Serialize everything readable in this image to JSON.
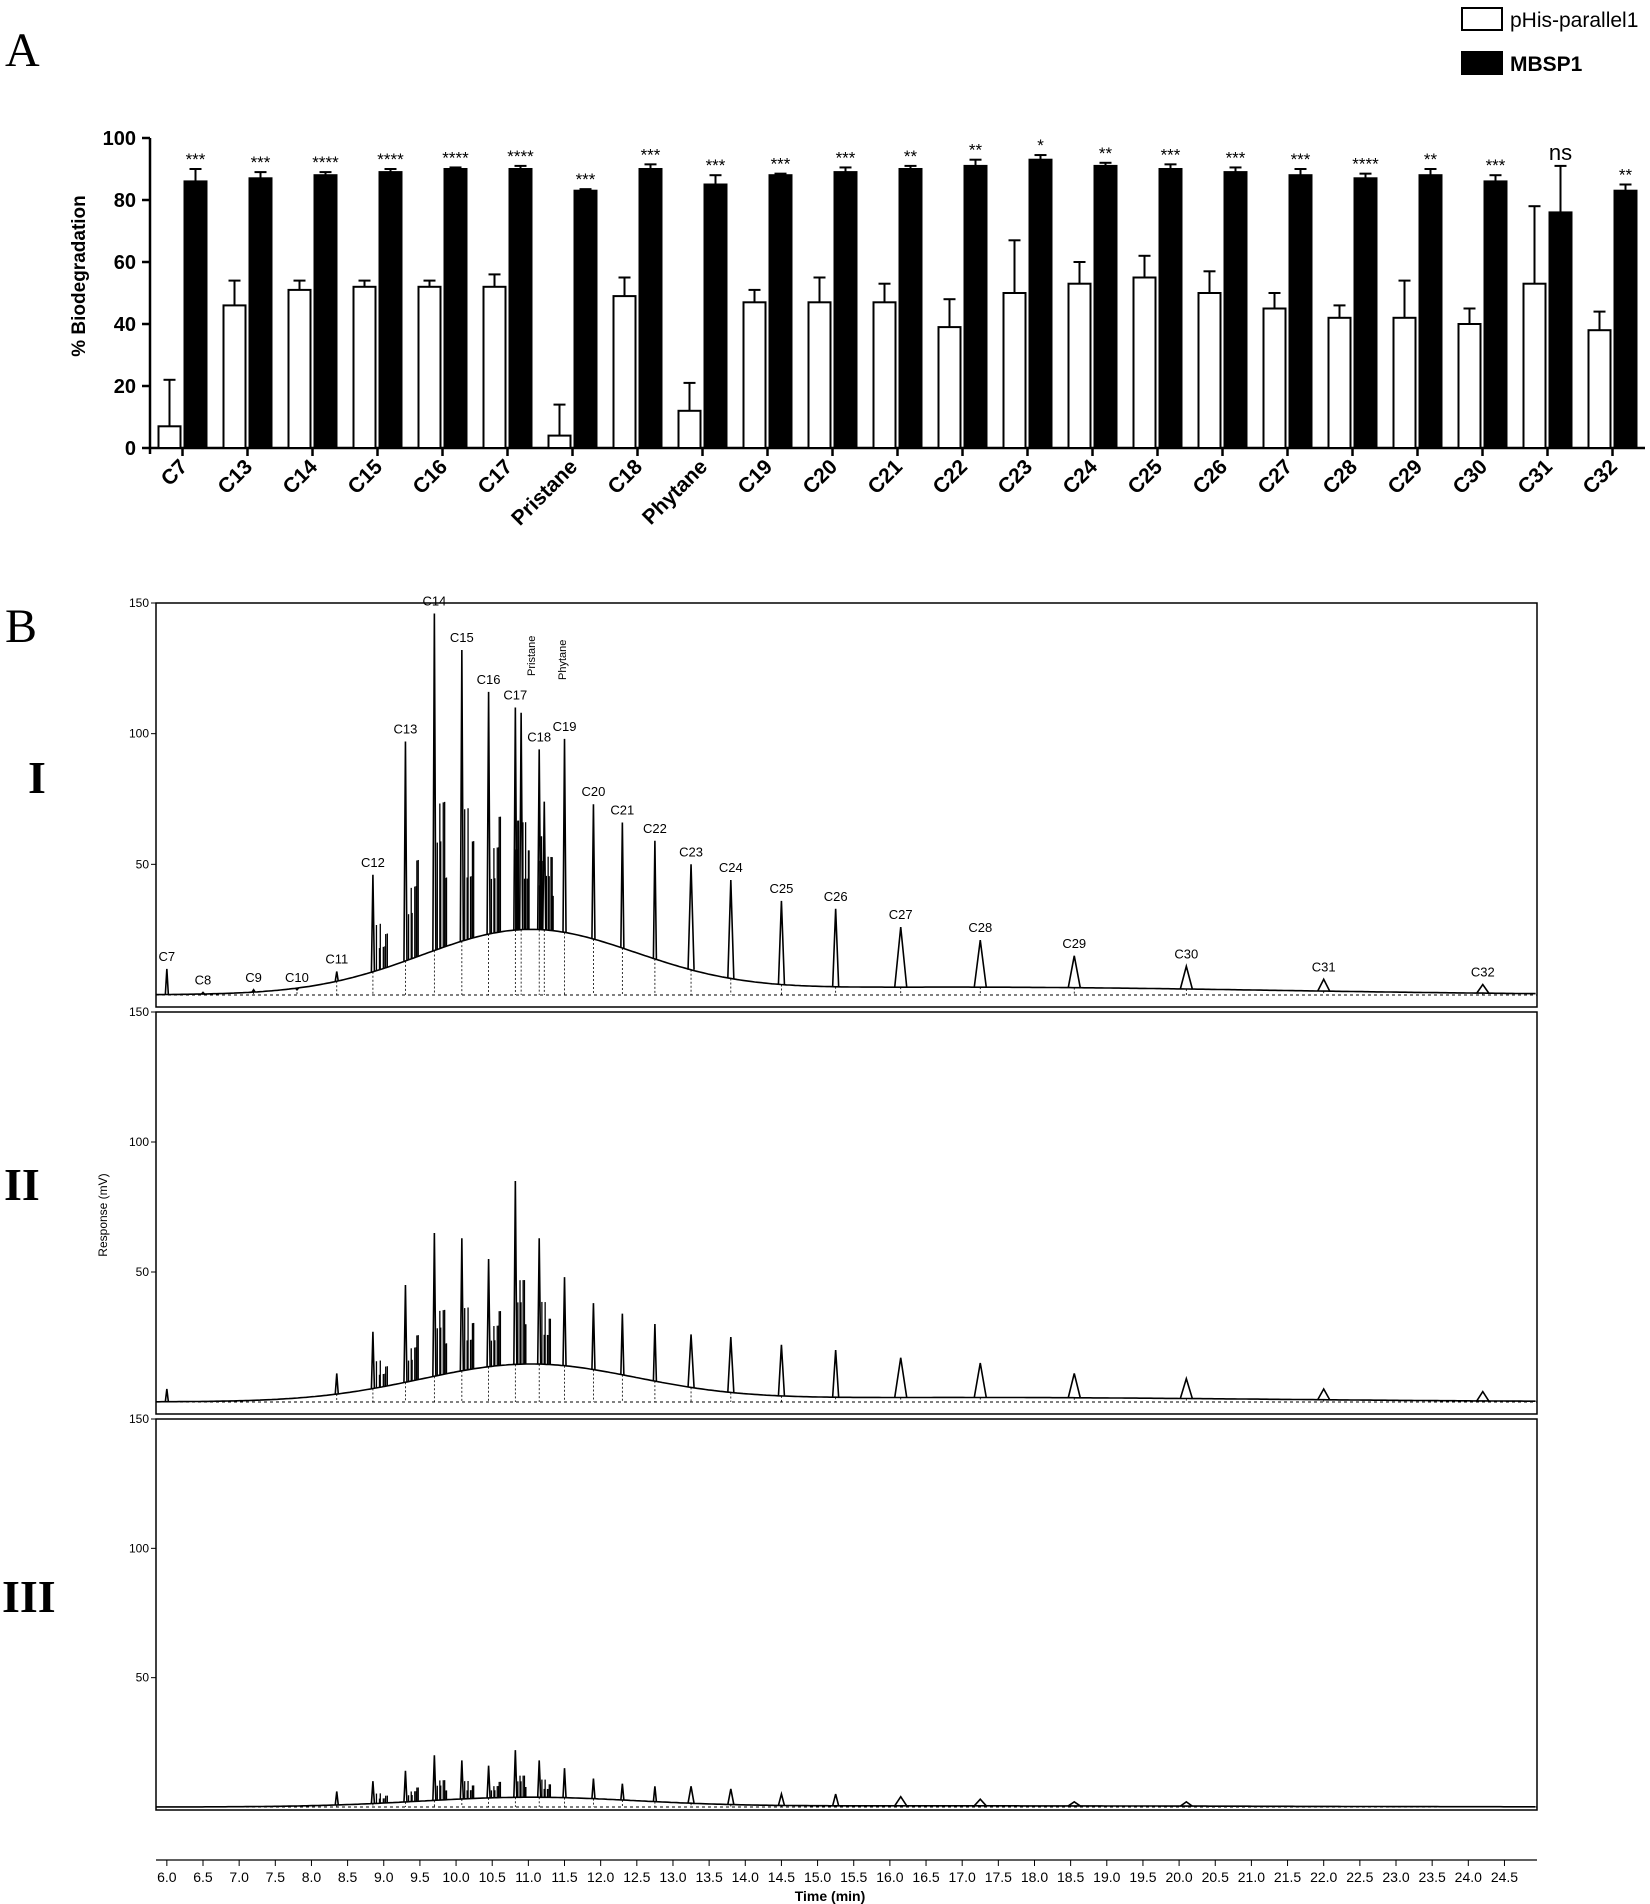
{
  "panel_a": {
    "letter": "A",
    "legend": [
      {
        "label": "pHis-parallel1",
        "fill": "#ffffff"
      },
      {
        "label": "MBSP1",
        "fill": "#000000"
      }
    ]
  },
  "panel_b": {
    "letter": "B",
    "subpanels": [
      "I",
      "II",
      "III"
    ]
  },
  "chart_data": [
    {
      "type": "bar",
      "ylabel": "% Biodegradation",
      "ylim": [
        0,
        100
      ],
      "yticks": [
        0,
        20,
        40,
        60,
        80,
        100
      ],
      "legend_position": "top-right",
      "categories": [
        "C7",
        "C13",
        "C14",
        "C15",
        "C16",
        "C17",
        "Pristane",
        "C18",
        "Phytane",
        "C19",
        "C20",
        "C21",
        "C22",
        "C23",
        "C24",
        "C25",
        "C26",
        "C27",
        "C28",
        "C29",
        "C30",
        "C31",
        "C32"
      ],
      "series": [
        {
          "name": "pHis-parallel1",
          "values": [
            7,
            46,
            51,
            52,
            52,
            52,
            4,
            49,
            12,
            47,
            47,
            47,
            39,
            50,
            53,
            55,
            50,
            45,
            42,
            42,
            40,
            53,
            38
          ],
          "errors": [
            15,
            8,
            3,
            2,
            2,
            4,
            10,
            6,
            9,
            4,
            8,
            6,
            9,
            17,
            7,
            7,
            7,
            5,
            4,
            12,
            5,
            25,
            6
          ]
        },
        {
          "name": "MBSP1",
          "values": [
            86,
            87,
            88,
            89,
            90,
            90,
            83,
            90,
            85,
            88,
            89,
            90,
            91,
            93,
            91,
            90,
            89,
            88,
            87,
            88,
            86,
            76,
            83
          ],
          "errors": [
            4,
            2,
            1,
            1,
            0.5,
            1,
            0.5,
            1.5,
            3,
            0.5,
            1.5,
            1,
            2,
            1.5,
            1,
            1.5,
            1.5,
            2,
            1.5,
            2,
            2,
            15,
            2
          ]
        }
      ],
      "significance": [
        "***",
        "***",
        "****",
        "****",
        "****",
        "****",
        "***",
        "***",
        "***",
        "***",
        "***",
        "**",
        "**",
        "*",
        "**",
        "***",
        "***",
        "***",
        "****",
        "**",
        "***",
        "ns",
        "**"
      ]
    },
    {
      "type": "line",
      "xlabel": "Time (min)",
      "ylabel": "Response (mV)",
      "ylim": [
        0,
        150
      ],
      "yticks": [
        50,
        100,
        150
      ],
      "xlim": [
        5.85,
        24.95
      ],
      "xticks": [
        6.0,
        6.5,
        7.0,
        7.5,
        8.0,
        8.5,
        9.0,
        9.5,
        10.0,
        10.5,
        11.0,
        11.5,
        12.0,
        12.5,
        13.0,
        13.5,
        14.0,
        14.5,
        15.0,
        15.5,
        16.0,
        16.5,
        17.0,
        17.5,
        18.0,
        18.5,
        19.0,
        19.5,
        20.0,
        20.5,
        21.0,
        21.5,
        22.0,
        22.5,
        23.0,
        23.5,
        24.0,
        24.5
      ],
      "panels": [
        {
          "name": "I",
          "peaks": [
            {
              "t": 6.0,
              "h": 10,
              "label": "C7"
            },
            {
              "t": 6.5,
              "h": 1,
              "label": "C8"
            },
            {
              "t": 7.2,
              "h": 2,
              "label": "C9"
            },
            {
              "t": 7.8,
              "h": 2,
              "label": "C10"
            },
            {
              "t": 8.35,
              "h": 9,
              "label": "C11"
            },
            {
              "t": 8.85,
              "h": 46,
              "label": "C12"
            },
            {
              "t": 9.3,
              "h": 97,
              "label": "C13"
            },
            {
              "t": 9.7,
              "h": 146,
              "label": "C14"
            },
            {
              "t": 10.08,
              "h": 132,
              "label": "C15"
            },
            {
              "t": 10.45,
              "h": 116,
              "label": "C16"
            },
            {
              "t": 10.82,
              "h": 110,
              "label": "C17"
            },
            {
              "t": 10.9,
              "h": 108,
              "label": "Pristane"
            },
            {
              "t": 11.15,
              "h": 94,
              "label": "C18"
            },
            {
              "t": 11.22,
              "h": 74,
              "label": "Phytane"
            },
            {
              "t": 11.5,
              "h": 98,
              "label": "C19"
            },
            {
              "t": 11.9,
              "h": 73,
              "label": "C20"
            },
            {
              "t": 12.3,
              "h": 66,
              "label": "C21"
            },
            {
              "t": 12.75,
              "h": 59,
              "label": "C22"
            },
            {
              "t": 13.25,
              "h": 50,
              "label": "C23"
            },
            {
              "t": 13.8,
              "h": 44,
              "label": "C24"
            },
            {
              "t": 14.5,
              "h": 36,
              "label": "C25"
            },
            {
              "t": 15.25,
              "h": 33,
              "label": "C26"
            },
            {
              "t": 16.15,
              "h": 26,
              "label": "C27"
            },
            {
              "t": 17.25,
              "h": 21,
              "label": "C28"
            },
            {
              "t": 18.55,
              "h": 15,
              "label": "C29"
            },
            {
              "t": 20.1,
              "h": 11,
              "label": "C30"
            },
            {
              "t": 22.0,
              "h": 6,
              "label": "C31"
            },
            {
              "t": 24.2,
              "h": 4,
              "label": "C32"
            }
          ]
        },
        {
          "name": "II",
          "peaks": [
            {
              "t": 6.0,
              "h": 5
            },
            {
              "t": 8.35,
              "h": 11
            },
            {
              "t": 8.85,
              "h": 27
            },
            {
              "t": 9.3,
              "h": 45
            },
            {
              "t": 9.7,
              "h": 65
            },
            {
              "t": 10.08,
              "h": 63
            },
            {
              "t": 10.45,
              "h": 55
            },
            {
              "t": 10.82,
              "h": 85
            },
            {
              "t": 11.15,
              "h": 63
            },
            {
              "t": 11.5,
              "h": 48
            },
            {
              "t": 11.9,
              "h": 38
            },
            {
              "t": 12.3,
              "h": 34
            },
            {
              "t": 12.75,
              "h": 30
            },
            {
              "t": 13.25,
              "h": 26
            },
            {
              "t": 13.8,
              "h": 25
            },
            {
              "t": 14.5,
              "h": 22
            },
            {
              "t": 15.25,
              "h": 20
            },
            {
              "t": 16.15,
              "h": 17
            },
            {
              "t": 17.25,
              "h": 15
            },
            {
              "t": 18.55,
              "h": 11
            },
            {
              "t": 20.1,
              "h": 9
            },
            {
              "t": 22.0,
              "h": 5
            },
            {
              "t": 24.2,
              "h": 4
            }
          ]
        },
        {
          "name": "III",
          "peaks": [
            {
              "t": 8.35,
              "h": 6
            },
            {
              "t": 8.85,
              "h": 10
            },
            {
              "t": 9.3,
              "h": 14
            },
            {
              "t": 9.7,
              "h": 20
            },
            {
              "t": 10.08,
              "h": 18
            },
            {
              "t": 10.45,
              "h": 16
            },
            {
              "t": 10.82,
              "h": 22
            },
            {
              "t": 11.15,
              "h": 18
            },
            {
              "t": 11.5,
              "h": 15
            },
            {
              "t": 11.9,
              "h": 11
            },
            {
              "t": 12.3,
              "h": 9
            },
            {
              "t": 12.75,
              "h": 8
            },
            {
              "t": 13.25,
              "h": 8
            },
            {
              "t": 13.8,
              "h": 7
            },
            {
              "t": 14.5,
              "h": 5
            },
            {
              "t": 15.25,
              "h": 5
            },
            {
              "t": 16.15,
              "h": 4
            },
            {
              "t": 17.25,
              "h": 3
            },
            {
              "t": 18.55,
              "h": 2
            },
            {
              "t": 20.1,
              "h": 2
            }
          ]
        }
      ]
    }
  ]
}
